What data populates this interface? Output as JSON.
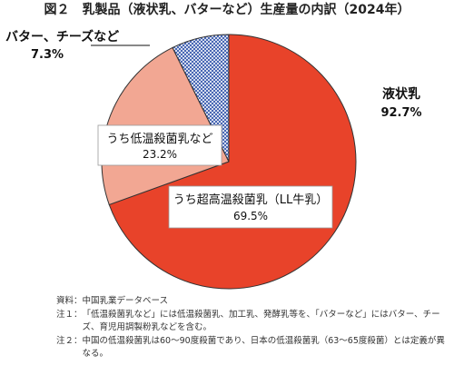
{
  "chart_data": {
    "type": "pie",
    "title": "図２　乳製品（液状乳、バターなど）生産量の内訳（2024年）",
    "slices": [
      {
        "label": "うち超高温殺菌乳（LL牛乳）",
        "value": 69.5,
        "display": "69.5%",
        "color": "#e8432a"
      },
      {
        "label": "うち低温殺菌乳など",
        "value": 23.2,
        "display": "23.2%",
        "color": "#f2a793"
      },
      {
        "label": "バター、チーズなど",
        "value": 7.3,
        "display": "7.3%",
        "color": "#2b4fa8"
      }
    ],
    "group": {
      "label": "液状乳",
      "value": 92.7,
      "display": "92.7%"
    }
  },
  "notes": [
    {
      "head": "資料：",
      "text": "中国乳業データベース"
    },
    {
      "head": "注１：",
      "text": "「低温殺菌乳など」には低温殺菌乳、加工乳、発酵乳等を、「バターなど」にはバター、チーズ、育児用調製粉乳などを含む。"
    },
    {
      "head": "注２：",
      "text": "中国の低温殺菌乳は60～90度殺菌であり、日本の低温殺菌乳（63～65度殺菌）とは定義が異なる。"
    }
  ]
}
